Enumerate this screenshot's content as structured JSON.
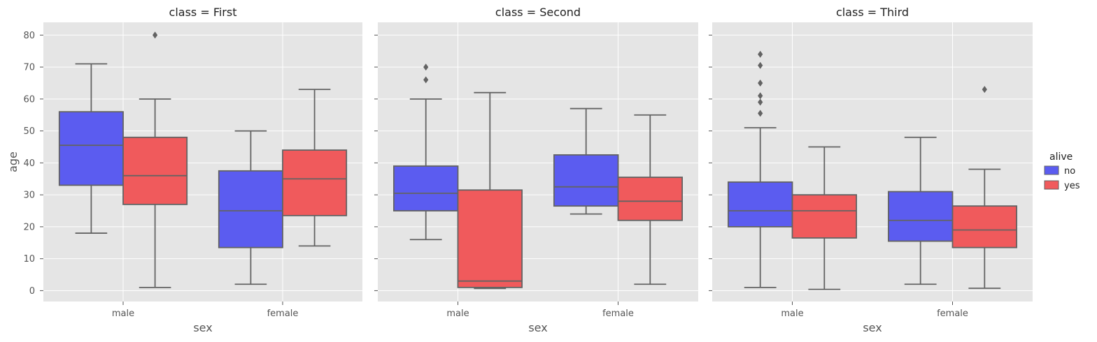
{
  "chart_data": {
    "type": "box",
    "xlabel": "sex",
    "ylabel": "age",
    "ylim": [
      -3.4,
      84
    ],
    "yticks": [
      0,
      10,
      20,
      30,
      40,
      50,
      60,
      70,
      80
    ],
    "categories": [
      "male",
      "female"
    ],
    "legend": {
      "title": "alive",
      "placement": "right",
      "entries": [
        {
          "name": "no",
          "color": "#5b5cf0"
        },
        {
          "name": "yes",
          "color": "#f05a5c"
        }
      ]
    },
    "panels": [
      {
        "title": "class = First",
        "boxes": [
          {
            "category": "male",
            "hue": "no",
            "whislo": 18,
            "q1": 33,
            "med": 45.5,
            "q3": 56,
            "whishi": 71,
            "fliers": []
          },
          {
            "category": "male",
            "hue": "yes",
            "whislo": 1,
            "q1": 27,
            "med": 36,
            "q3": 48,
            "whishi": 60,
            "fliers": [
              80
            ]
          },
          {
            "category": "female",
            "hue": "no",
            "whislo": 2,
            "q1": 13.5,
            "med": 25,
            "q3": 37.5,
            "whishi": 50,
            "fliers": []
          },
          {
            "category": "female",
            "hue": "yes",
            "whislo": 14,
            "q1": 23.5,
            "med": 35,
            "q3": 44,
            "whishi": 63,
            "fliers": []
          }
        ]
      },
      {
        "title": "class = Second",
        "boxes": [
          {
            "category": "male",
            "hue": "no",
            "whislo": 16,
            "q1": 25,
            "med": 30.5,
            "q3": 39,
            "whishi": 60,
            "fliers": [
              66,
              70
            ]
          },
          {
            "category": "male",
            "hue": "yes",
            "whislo": 0.7,
            "q1": 1,
            "med": 3,
            "q3": 31.5,
            "whishi": 62,
            "fliers": []
          },
          {
            "category": "female",
            "hue": "no",
            "whislo": 24,
            "q1": 26.5,
            "med": 32.5,
            "q3": 42.5,
            "whishi": 57,
            "fliers": []
          },
          {
            "category": "female",
            "hue": "yes",
            "whislo": 2,
            "q1": 22,
            "med": 28,
            "q3": 35.5,
            "whishi": 55,
            "fliers": []
          }
        ]
      },
      {
        "title": "class = Third",
        "boxes": [
          {
            "category": "male",
            "hue": "no",
            "whislo": 1,
            "q1": 20,
            "med": 25,
            "q3": 34,
            "whishi": 51,
            "fliers": [
              55.5,
              59,
              61,
              65,
              70.5,
              74
            ]
          },
          {
            "category": "male",
            "hue": "yes",
            "whislo": 0.4,
            "q1": 16.5,
            "med": 25,
            "q3": 30,
            "whishi": 45,
            "fliers": []
          },
          {
            "category": "female",
            "hue": "no",
            "whislo": 2,
            "q1": 15.5,
            "med": 22,
            "q3": 31,
            "whishi": 48,
            "fliers": []
          },
          {
            "category": "female",
            "hue": "yes",
            "whislo": 0.75,
            "q1": 13.5,
            "med": 19,
            "q3": 26.5,
            "whishi": 38,
            "fliers": [
              63
            ]
          }
        ]
      }
    ]
  }
}
